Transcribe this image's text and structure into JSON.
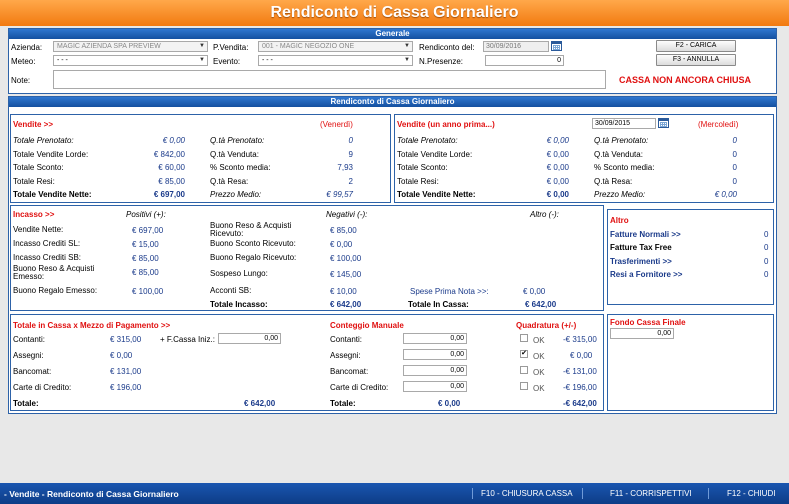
{
  "window": {
    "title": "Rendiconto di Cassa Giornaliero"
  },
  "generale": {
    "header": "Generale",
    "azienda_label": "Azienda:",
    "azienda_value": "MAGIC AZIENDA SPA PREVIEW",
    "pvendita_label": "P.Vendita:",
    "pvendita_value": "001 - MAGIC NEGOZIO ONE",
    "rendiconto_label": "Rendiconto del:",
    "rendiconto_value": "30/09/2016",
    "meteo_label": "Meteo:",
    "meteo_value": "- - -",
    "evento_label": "Evento:",
    "evento_value": "- - -",
    "npresenze_label": "N.Presenze:",
    "npresenze_value": "0",
    "note_label": "Note:",
    "note_value": "",
    "carica_button": "F2 - CARICA",
    "annulla_button": "F3 - ANNULLA",
    "status": "CASSA NON ANCORA CHIUSA"
  },
  "rendiconto": {
    "header": "Rendiconto di Cassa Giornaliero",
    "vendite": {
      "title": "Vendite >>",
      "day": "(Venerdì)",
      "rows_left": [
        {
          "label": "Totale Prenotato:",
          "value": "€ 0,00",
          "style": "italic"
        },
        {
          "label": "Totale Vendite Lorde:",
          "value": "€ 842,00",
          "style": "normal"
        },
        {
          "label": "Totale Sconto:",
          "value": "€ 60,00",
          "style": "normal"
        },
        {
          "label": "Totale Resi:",
          "value": "€ 85,00",
          "style": "normal"
        },
        {
          "label": "Totale Vendite Nette:",
          "value": "€ 697,00",
          "style": "bold"
        }
      ],
      "rows_right": [
        {
          "label": "Q.tà Prenotato:",
          "value": "0",
          "style": "italic"
        },
        {
          "label": "Q.tà Venduta:",
          "value": "9",
          "style": "normal"
        },
        {
          "label": "% Sconto media:",
          "value": "7,93",
          "style": "normal"
        },
        {
          "label": "Q.tà Resa:",
          "value": "2",
          "style": "normal"
        },
        {
          "label": "Prezzo Medio:",
          "value": "€ 99,57",
          "style": "italic"
        }
      ]
    },
    "vendite_prev": {
      "title": "Vendite (un anno prima...)",
      "date_value": "30/09/2015",
      "day": "(Mercoledì)",
      "rows_left": [
        {
          "label": "Totale Prenotato:",
          "value": "€ 0,00",
          "style": "italic"
        },
        {
          "label": "Totale Vendite Lorde:",
          "value": "€ 0,00",
          "style": "normal"
        },
        {
          "label": "Totale Sconto:",
          "value": "€ 0,00",
          "style": "normal"
        },
        {
          "label": "Totale Resi:",
          "value": "€ 0,00",
          "style": "normal"
        },
        {
          "label": "Totale Vendite Nette:",
          "value": "€ 0,00",
          "style": "bold"
        }
      ],
      "rows_right": [
        {
          "label": "Q.tà Prenotato:",
          "value": "0",
          "style": "italic"
        },
        {
          "label": "Q.tà Venduta:",
          "value": "0",
          "style": "normal"
        },
        {
          "label": "% Sconto media:",
          "value": "0",
          "style": "normal"
        },
        {
          "label": "Q.tà Resa:",
          "value": "0",
          "style": "normal"
        },
        {
          "label": "Prezzo Medio:",
          "value": "€ 0,00",
          "style": "italic"
        }
      ]
    },
    "incasso": {
      "title": "Incasso >>",
      "positivi_header": "Positivi (+):",
      "negativi_header": "Negativi (-):",
      "altro_header": "Altro (-):",
      "positivi": [
        {
          "label": "Vendite Nette:",
          "value": "€ 697,00"
        },
        {
          "label": "Incasso Crediti SL:",
          "value": "€ 15,00"
        },
        {
          "label": "Incasso Crediti SB:",
          "value": "€ 85,00"
        },
        {
          "label": "Buono Reso & Acquisti Emesso:",
          "value": "€ 85,00"
        },
        {
          "label": "Buono Regalo Emesso:",
          "value": "€ 100,00"
        }
      ],
      "negativi": [
        {
          "label": "Buono Reso & Acquisti Ricevuto:",
          "value": "€ 85,00"
        },
        {
          "label": "Buono Sconto Ricevuto:",
          "value": "€ 0,00"
        },
        {
          "label": "Buono Regalo Ricevuto:",
          "value": "€ 100,00"
        },
        {
          "label": "Sospeso Lungo:",
          "value": "€ 145,00"
        },
        {
          "label": "Acconti SB:",
          "value": "€ 10,00"
        }
      ],
      "spese_label": "Spese Prima Nota >>:",
      "spese_value": "€ 0,00",
      "totale_incasso_label": "Totale Incasso:",
      "totale_incasso_value": "€ 642,00",
      "totale_cassa_label": "Totale In Cassa:",
      "totale_cassa_value": "€ 642,00"
    },
    "altro": {
      "title": "Altro",
      "items": [
        {
          "label": "Fatture Normali >>",
          "value": "0"
        },
        {
          "label": "Fatture Tax Free",
          "value": "0"
        },
        {
          "label": "Trasferimenti >>",
          "value": "0"
        },
        {
          "label": "Resi a Fornitore >>",
          "value": "0"
        }
      ]
    },
    "cassa": {
      "title": "Totale in Cassa x Mezzo di Pagamento >>",
      "fcassa_label": "+ F.Cassa Iniz.:",
      "fcassa_value": "0,00",
      "rows": [
        {
          "label": "Contanti:",
          "value": "€ 315,00"
        },
        {
          "label": "Assegni:",
          "value": "€ 0,00"
        },
        {
          "label": "Bancomat:",
          "value": "€ 131,00"
        },
        {
          "label": "Carte di Credito:",
          "value": "€ 196,00"
        }
      ],
      "totale_label": "Totale:",
      "totale_value": "€ 642,00"
    },
    "conteggio": {
      "title": "Conteggio Manuale",
      "rows": [
        {
          "label": "Contanti:",
          "value": "0,00"
        },
        {
          "label": "Assegni:",
          "value": "0,00"
        },
        {
          "label": "Bancomat:",
          "value": "0,00"
        },
        {
          "label": "Carte di Credito:",
          "value": "0,00"
        }
      ],
      "totale_label": "Totale:",
      "totale_value": "€ 0,00"
    },
    "quadratura": {
      "title": "Quadratura (+/-)",
      "ok_label": "OK",
      "rows": [
        {
          "value": "-€ 315,00",
          "checked": false
        },
        {
          "value": "€ 0,00",
          "checked": true
        },
        {
          "value": "-€ 131,00",
          "checked": false
        },
        {
          "value": "-€ 196,00",
          "checked": false
        }
      ],
      "totale_value": "-€ 642,00"
    },
    "fondo": {
      "title": "Fondo Cassa Finale",
      "value": "0,00"
    }
  },
  "footer": {
    "title": "- Vendite - Rendiconto di Cassa Giornaliero",
    "f10": "F10 - CHIUSURA CASSA",
    "f11": "F11 - CORRISPETTIVI",
    "f12": "F12 - CHIUDI"
  },
  "colors": {
    "accent_orange": "#f27a10",
    "header_blue": "#1450a0",
    "alert_red": "#e01010",
    "value_blue": "#1a3a8a"
  }
}
